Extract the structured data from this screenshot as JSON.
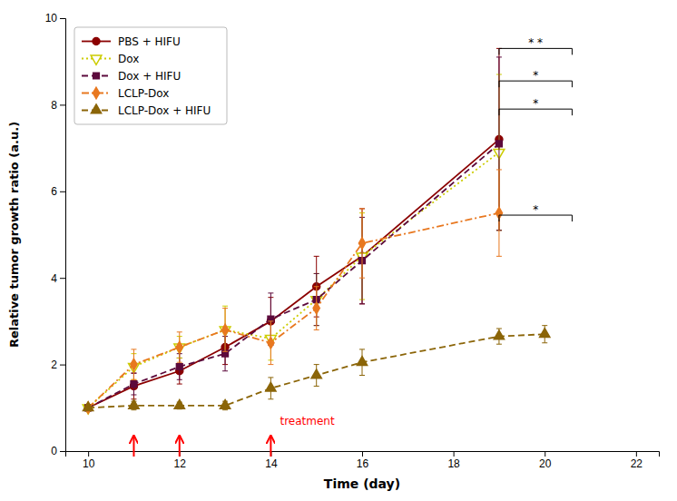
{
  "chart_data": {
    "type": "line",
    "xlabel": "Time (day)",
    "ylabel": "Relative tumor growth ratio (a.u.)",
    "xlim": [
      9.5,
      22.5
    ],
    "ylim": [
      0,
      10
    ],
    "xticks": [
      10,
      12,
      14,
      16,
      18,
      20,
      22
    ],
    "yticks": [
      0,
      2,
      4,
      6,
      8,
      10
    ],
    "grid": false,
    "legend": "upper-left",
    "series": [
      {
        "name": "PBS + HIFU",
        "color": "#8B0000",
        "line_style": "solid",
        "marker": "circle",
        "x": [
          10,
          11,
          12,
          13,
          14,
          15,
          16,
          19
        ],
        "values": [
          1.0,
          1.5,
          1.85,
          2.4,
          3.0,
          3.8,
          4.5,
          7.2
        ],
        "errors": [
          0.05,
          0.3,
          0.3,
          0.4,
          0.55,
          0.7,
          1.1,
          2.1
        ]
      },
      {
        "name": "Dox",
        "color": "#CCCC00",
        "line_style": "dotted",
        "marker": "open-triangle-down",
        "x": [
          10,
          11,
          12,
          13,
          14,
          15,
          16,
          19
        ],
        "values": [
          1.0,
          1.95,
          2.4,
          2.8,
          2.6,
          3.5,
          4.5,
          6.9
        ],
        "errors": [
          0.05,
          0.3,
          0.25,
          0.55,
          0.5,
          0.6,
          1.0,
          1.8
        ]
      },
      {
        "name": "Dox + HIFU",
        "color": "#5C0A3C",
        "line_style": "dashed",
        "marker": "square",
        "x": [
          10,
          11,
          12,
          13,
          14,
          15,
          16,
          19
        ],
        "values": [
          1.0,
          1.55,
          1.95,
          2.25,
          3.05,
          3.5,
          4.4,
          7.1
        ],
        "errors": [
          0.05,
          0.25,
          0.3,
          0.4,
          0.6,
          0.6,
          1.0,
          2.0
        ]
      },
      {
        "name": "LCLP-Dox",
        "color": "#E87820",
        "line_style": "dashdot",
        "marker": "diamond",
        "x": [
          10,
          11,
          12,
          13,
          14,
          15,
          16,
          19
        ],
        "values": [
          1.0,
          2.0,
          2.4,
          2.8,
          2.5,
          3.3,
          4.8,
          5.5
        ],
        "errors": [
          0.05,
          0.35,
          0.35,
          0.5,
          0.5,
          0.5,
          0.8,
          1.0
        ]
      },
      {
        "name": "LCLP-Dox + HIFU",
        "color": "#8B6508",
        "line_style": "dashed",
        "marker": "triangle-up",
        "x": [
          10,
          11,
          12,
          13,
          14,
          15,
          16,
          19,
          20
        ],
        "values": [
          1.0,
          1.05,
          1.05,
          1.05,
          1.45,
          1.75,
          2.05,
          2.65,
          2.7
        ],
        "errors": [
          0.05,
          0.1,
          0.08,
          0.1,
          0.25,
          0.25,
          0.3,
          0.18,
          0.2
        ]
      }
    ],
    "arrows": [
      {
        "x": 11,
        "y": 0.35,
        "color": "red"
      },
      {
        "x": 12,
        "y": 0.35,
        "color": "red"
      },
      {
        "x": 14,
        "y": 0.35,
        "color": "red"
      }
    ],
    "annotations": [
      {
        "text": "treatment",
        "x": 14.2,
        "y": 0.6,
        "color": "red"
      }
    ],
    "brackets": [
      {
        "x1": 19.0,
        "x2": 20.6,
        "y": 9.3,
        "label": "* *"
      },
      {
        "x1": 19.0,
        "x2": 20.6,
        "y": 8.55,
        "label": "*"
      },
      {
        "x1": 19.0,
        "x2": 20.6,
        "y": 7.9,
        "label": "*"
      },
      {
        "x1": 19.0,
        "x2": 20.6,
        "y": 5.45,
        "label": "*"
      }
    ]
  }
}
